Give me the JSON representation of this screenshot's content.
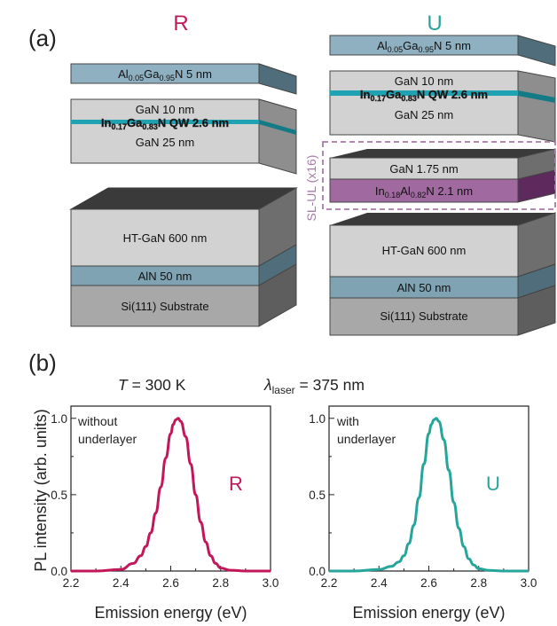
{
  "colors": {
    "R": "#c2185b",
    "U": "#26a69a",
    "gan": "#d2d2d2",
    "gan_side": "#8e8e8e",
    "algan": "#8fb0c0",
    "algan_side": "#4f6d7a",
    "aln": "#7fa3b3",
    "sub": "#a8a8a8",
    "inaln": "#a06aa0",
    "inaln_side": "#5e2a5e",
    "top_dark": "#3a3a3a",
    "qw": "#1fa3b3",
    "sl_dash": "#a77aa7"
  },
  "panel_a": {
    "letter": "(a)",
    "R": {
      "title": "R",
      "cap_layer": {
        "pre": "Al",
        "sub1": "0.05",
        "mid": "Ga",
        "sub2": "0.95",
        "post": "N  5 nm"
      },
      "qw_block": {
        "top_text": "GaN  10 nm",
        "qw": {
          "pre": "In",
          "sub1": "0.17",
          "mid": "Ga",
          "sub2": "0.83",
          "post": "N  QW  2.6 nm"
        },
        "bottom_text": "GaN  25 nm"
      },
      "stack": {
        "htgan": "HT-GaN  600 nm",
        "aln": "AlN  50 nm",
        "substrate": "Si(111) Substrate"
      }
    },
    "U": {
      "title": "U",
      "cap_layer": {
        "pre": "Al",
        "sub1": "0.05",
        "mid": "Ga",
        "sub2": "0.95",
        "post": "N  5 nm"
      },
      "qw_block": {
        "top_text": "GaN  10 nm",
        "qw": {
          "pre": "In",
          "sub1": "0.17",
          "mid": "Ga",
          "sub2": "0.83",
          "post": "N  QW  2.6 nm"
        },
        "bottom_text": "GaN  25 nm"
      },
      "superlattice": {
        "label": "SL-UL (x16)",
        "gan": "GaN  1.75 nm",
        "inaln": {
          "pre": "In",
          "sub1": "0.18",
          "mid": "Al",
          "sub2": "0.82",
          "post": "N  2.1 nm"
        }
      },
      "stack": {
        "htgan": "HT-GaN  600 nm",
        "aln": "AlN  50 nm",
        "substrate": "Si(111) Substrate"
      }
    }
  },
  "panel_b": {
    "letter": "(b)",
    "condition_T": {
      "sym": "T",
      "rest": " = 300 K"
    },
    "condition_laser": {
      "sym": "λ",
      "sub": "laser",
      "rest": " = 375 nm"
    }
  },
  "chart_data": [
    {
      "type": "line",
      "title": "",
      "annotation": [
        "without",
        "underlayer"
      ],
      "series_label": "R",
      "xlabel": "Emission energy (eV)",
      "ylabel": "PL intensity (arb. units)",
      "xlim": [
        2.2,
        3.0
      ],
      "ylim": [
        0.0,
        1.08
      ],
      "xticks": [
        "2.2",
        "2.4",
        "2.6",
        "2.8",
        "3.0"
      ],
      "yticks": [
        "0.0",
        "0.5",
        "1.0"
      ],
      "series": [
        {
          "x": [
            2.2,
            2.3,
            2.4,
            2.45,
            2.48,
            2.5,
            2.52,
            2.54,
            2.56,
            2.58,
            2.6,
            2.61,
            2.62,
            2.63,
            2.64,
            2.66,
            2.68,
            2.7,
            2.72,
            2.74,
            2.76,
            2.78,
            2.8,
            2.84,
            2.9,
            3.0
          ],
          "y": [
            0.0,
            0.0,
            0.01,
            0.05,
            0.1,
            0.16,
            0.25,
            0.38,
            0.55,
            0.74,
            0.9,
            0.96,
            0.99,
            1.0,
            0.98,
            0.88,
            0.7,
            0.5,
            0.32,
            0.19,
            0.1,
            0.05,
            0.02,
            0.005,
            0.0,
            0.0
          ]
        }
      ]
    },
    {
      "type": "line",
      "title": "",
      "annotation": [
        "with",
        "underlayer"
      ],
      "series_label": "U",
      "xlabel": "Emission energy (eV)",
      "ylabel": "",
      "xlim": [
        2.2,
        3.0
      ],
      "ylim": [
        0.0,
        1.08
      ],
      "xticks": [
        "2.2",
        "2.4",
        "2.6",
        "2.8",
        "3.0"
      ],
      "yticks": [
        "0.0",
        "0.5",
        "1.0"
      ],
      "series": [
        {
          "x": [
            2.2,
            2.3,
            2.4,
            2.45,
            2.48,
            2.5,
            2.52,
            2.54,
            2.56,
            2.58,
            2.6,
            2.61,
            2.62,
            2.63,
            2.64,
            2.66,
            2.68,
            2.7,
            2.72,
            2.74,
            2.76,
            2.78,
            2.8,
            2.84,
            2.9,
            3.0
          ],
          "y": [
            0.0,
            0.0,
            0.01,
            0.03,
            0.06,
            0.1,
            0.18,
            0.3,
            0.48,
            0.7,
            0.9,
            0.96,
            0.99,
            1.0,
            0.98,
            0.86,
            0.66,
            0.45,
            0.28,
            0.16,
            0.08,
            0.04,
            0.015,
            0.004,
            0.0,
            0.0
          ]
        }
      ]
    }
  ]
}
